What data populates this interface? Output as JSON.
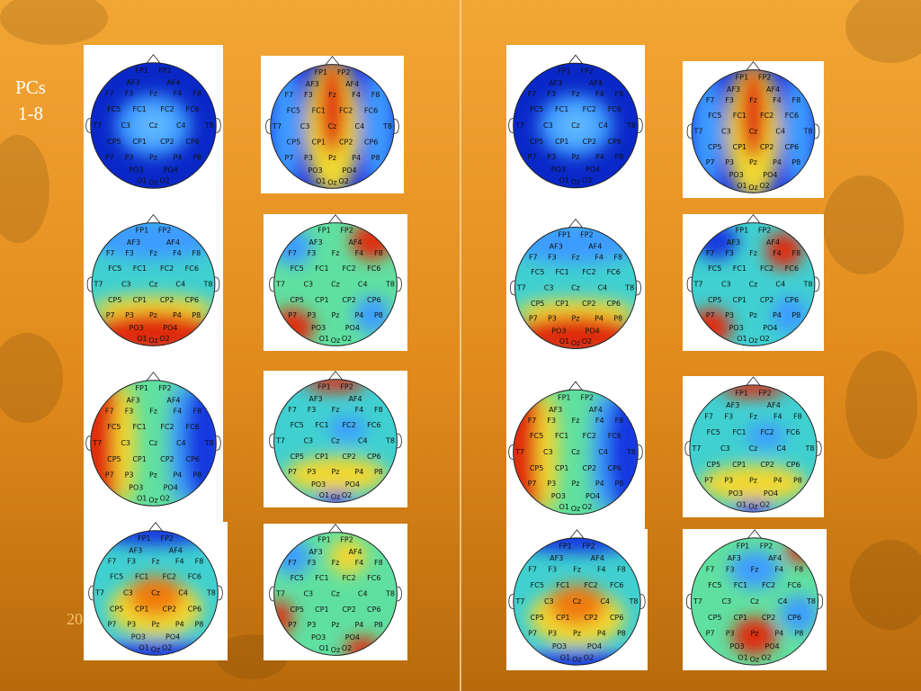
{
  "slide": {
    "label": [
      "PCs",
      "1-8"
    ],
    "footer": "20"
  },
  "electrodes": [
    "FP1",
    "FP2",
    "AF3",
    "AF4",
    "F7",
    "F3",
    "Fz",
    "F4",
    "F8",
    "FC5",
    "FC1",
    "FC2",
    "FC6",
    "T7",
    "C3",
    "Cz",
    "C4",
    "T8",
    "CP5",
    "CP1",
    "CP2",
    "CP6",
    "P7",
    "P3",
    "Pz",
    "P4",
    "P8",
    "PO3",
    "PO4",
    "O1",
    "Oz",
    "O2"
  ]
}
